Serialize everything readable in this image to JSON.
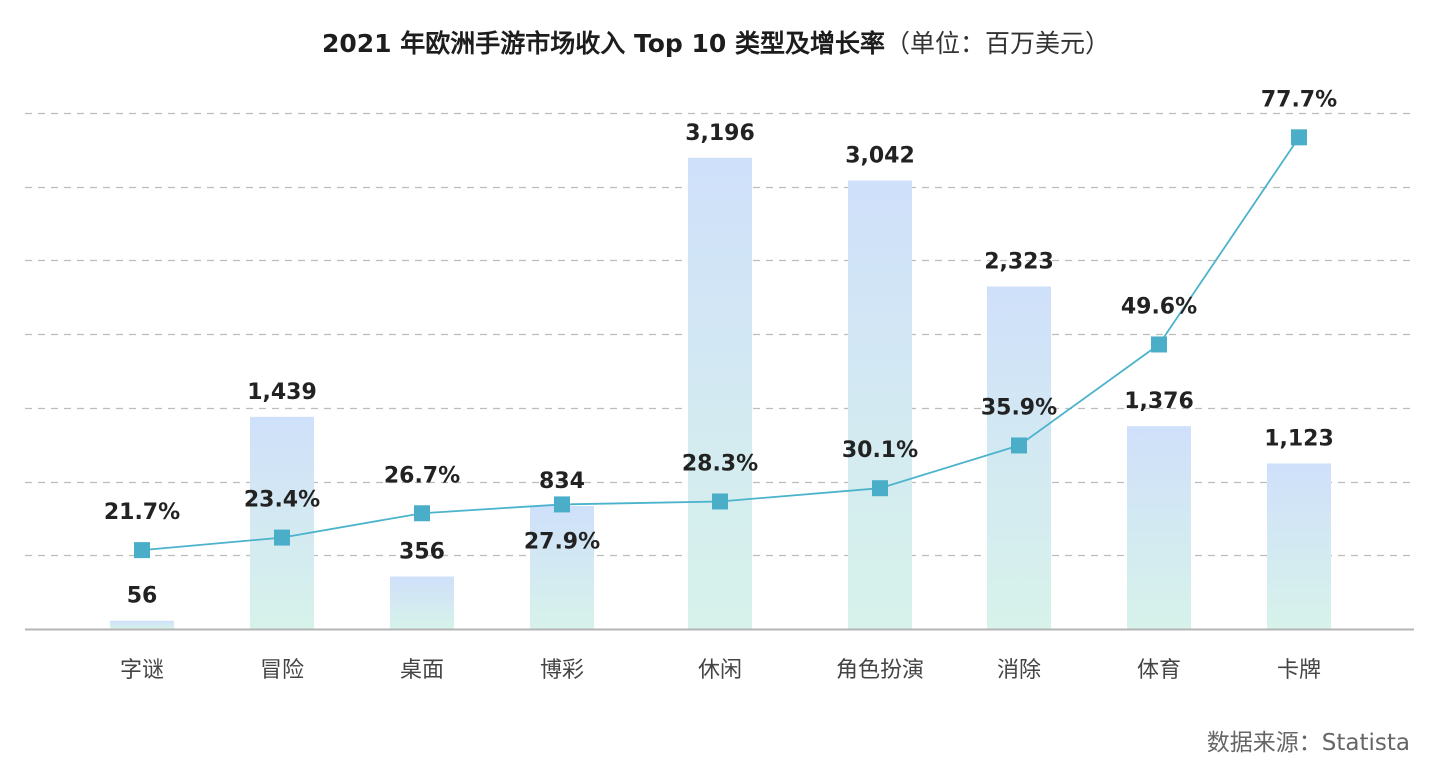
{
  "chart_data": {
    "type": "bar+line",
    "title": "2021 年欧洲手游市场收入 Top 10 类型及增长率",
    "title_unit": "（单位：百万美元）",
    "categories": [
      "字谜",
      "冒险",
      "桌面",
      "博彩",
      "休闲",
      "角色扮演",
      "消除",
      "体育",
      "卡牌"
    ],
    "series": [
      {
        "type": "bar",
        "values": [
          56,
          1439,
          356,
          834,
          3196,
          3042,
          2323,
          1376,
          1123
        ],
        "labels": [
          "56",
          "1,439",
          "356",
          "834",
          "3,196",
          "3,042",
          "2,323",
          "1,376",
          "1,123"
        ]
      },
      {
        "type": "line",
        "values": [
          21.7,
          23.4,
          26.7,
          27.9,
          28.3,
          30.1,
          35.9,
          49.6,
          77.7
        ],
        "labels": [
          "21.7%",
          "23.4%",
          "26.7%",
          "27.9%",
          "28.3%",
          "30.1%",
          "35.9%",
          "49.6%",
          "77.7%"
        ]
      }
    ],
    "ylim": [
      0,
      3500
    ],
    "y2lim": [
      11,
      81
    ],
    "grid": true,
    "colors": {
      "bar_top": "#cfe0fa",
      "bar_bottom": "#d7f2ea",
      "line": "#4bb3cb",
      "marker": "#4aaec8",
      "grid": "#bdbdbd",
      "axis": "#b5b5b5"
    },
    "source": "数据来源：Statista"
  }
}
